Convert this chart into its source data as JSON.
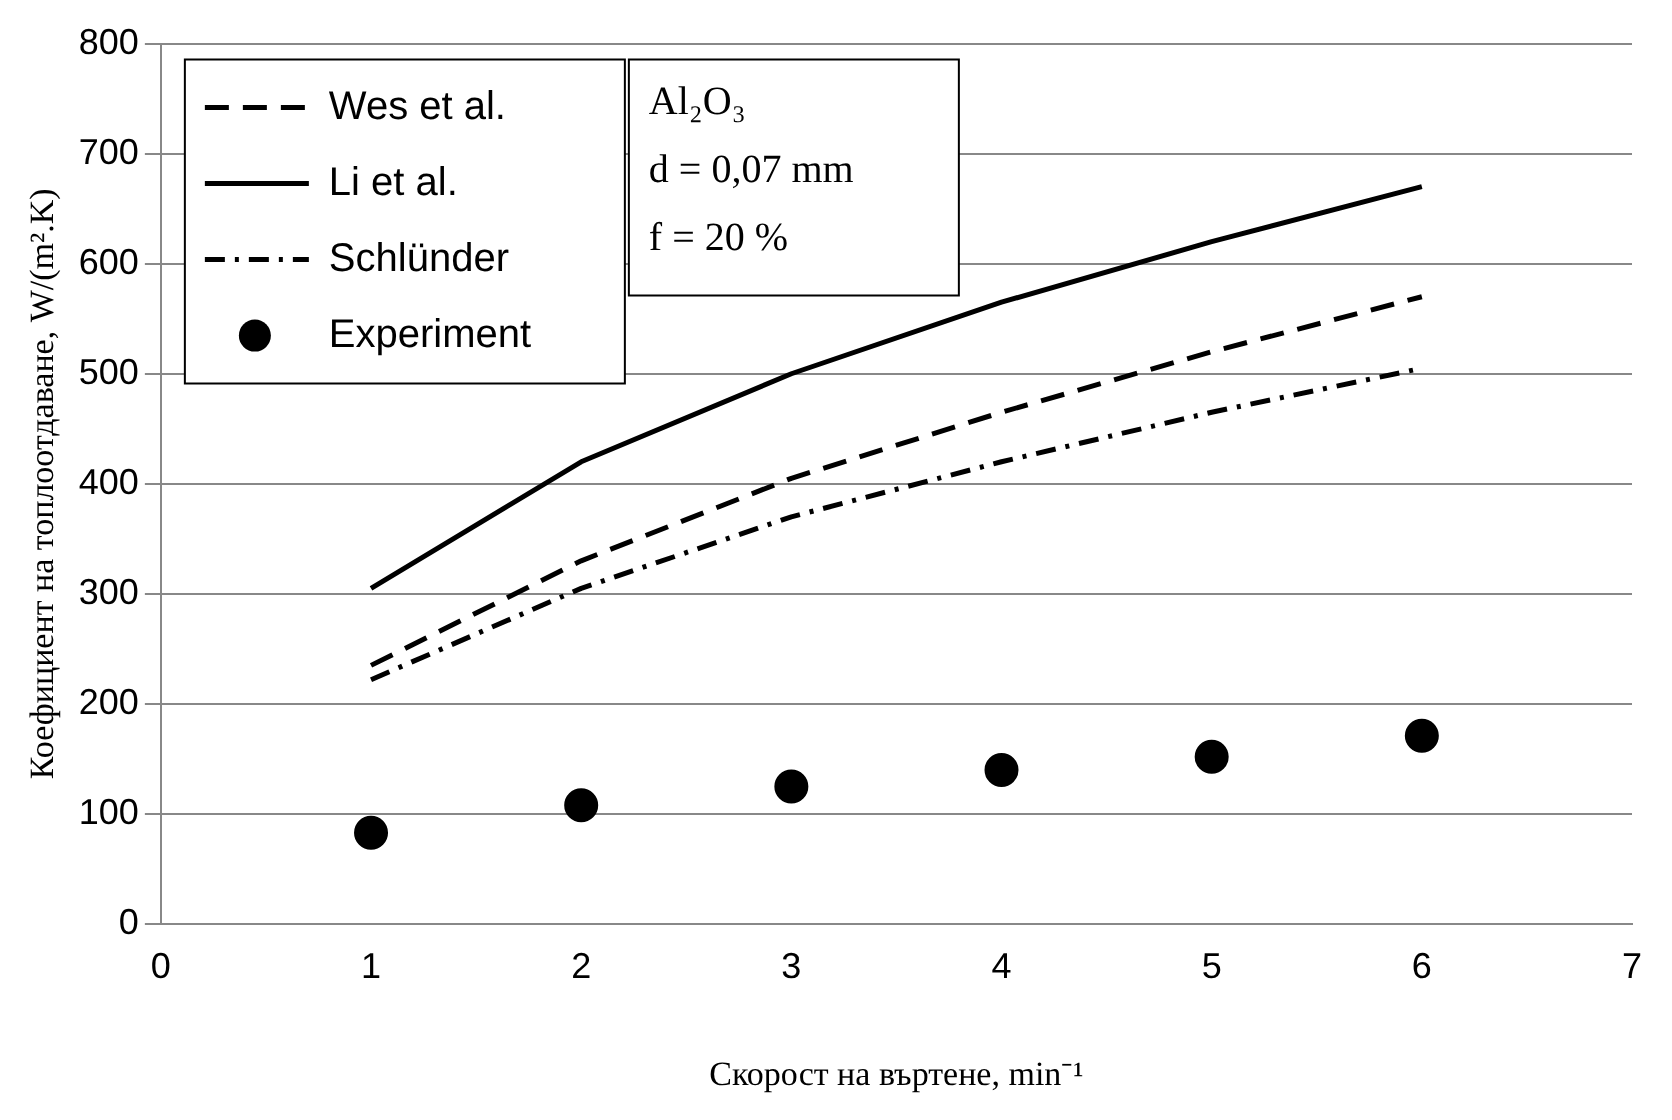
{
  "chart_data": {
    "type": "line",
    "xlabel": "Скорост на въртене, min⁻¹",
    "ylabel": "Коефициент на топлоотдаване, W/(m².K)",
    "xlim": [
      0,
      7
    ],
    "xticks": [
      0,
      1,
      2,
      3,
      4,
      5,
      6,
      7
    ],
    "ylim": [
      0,
      800
    ],
    "yticks": [
      0,
      100,
      200,
      300,
      400,
      500,
      600,
      700,
      800
    ],
    "grid": "y",
    "legend": "top left",
    "annotations": [
      "Al₂O₃",
      "d = 0,07 mm",
      "f = 20 %"
    ],
    "series": [
      {
        "name": "Wes et al.",
        "color": "#000000",
        "line_style": "dashed",
        "marker": "none",
        "x": [
          1,
          2,
          3,
          4,
          5,
          6
        ],
        "values": [
          235,
          330,
          405,
          465,
          520,
          570
        ]
      },
      {
        "name": "Li et al.",
        "color": "#000000",
        "line_style": "solid",
        "marker": "none",
        "x": [
          1,
          2,
          3,
          4,
          5,
          6
        ],
        "values": [
          305,
          420,
          500,
          565,
          620,
          670
        ]
      },
      {
        "name": "Schlünder",
        "color": "#000000",
        "line_style": "dashdot",
        "marker": "none",
        "x": [
          1,
          2,
          3,
          4,
          5,
          6
        ],
        "values": [
          222,
          305,
          370,
          420,
          465,
          505
        ]
      },
      {
        "name": "Experiment",
        "type": "scatter",
        "color": "#000000",
        "marker": "circle",
        "x": [
          1,
          2,
          3,
          4,
          5,
          6
        ],
        "values": [
          83,
          108,
          125,
          140,
          152,
          171
        ]
      }
    ]
  }
}
